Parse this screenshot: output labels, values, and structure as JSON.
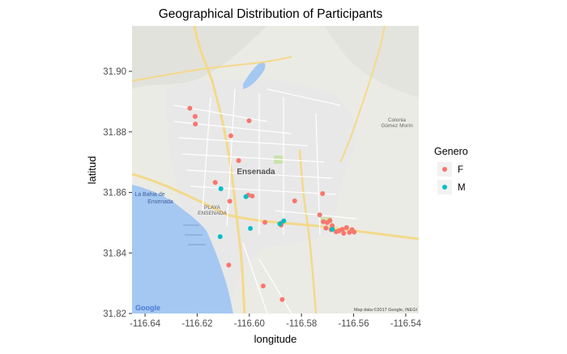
{
  "chart_data": {
    "type": "scatter",
    "title": "Geographical Distribution of Participants",
    "xlabel": "longitude",
    "ylabel": "latitud",
    "xlim": [
      -116.645,
      -116.535
    ],
    "ylim": [
      31.82,
      31.915
    ],
    "xticks": [
      -116.64,
      -116.62,
      -116.6,
      -116.58,
      -116.56,
      -116.54
    ],
    "xtick_labels": [
      "-116.64",
      "-116.62",
      "-116.60",
      "-116.58",
      "-116.56",
      "-116.54"
    ],
    "yticks": [
      31.82,
      31.84,
      31.86,
      31.88,
      31.9
    ],
    "ytick_labels": [
      "31.82",
      "31.84",
      "31.86",
      "31.88",
      "31.90"
    ],
    "grid": false,
    "legend": {
      "title": "Genero",
      "position": "right"
    },
    "series": [
      {
        "name": "F",
        "color": "#f8766d",
        "points": [
          [
            -116.6228,
            31.8878
          ],
          [
            -116.6208,
            31.8851
          ],
          [
            -116.6207,
            31.8826
          ],
          [
            -116.6071,
            31.8787
          ],
          [
            -116.6001,
            31.8837
          ],
          [
            -116.6041,
            31.8705
          ],
          [
            -116.6131,
            31.8633
          ],
          [
            -116.6004,
            31.8591
          ],
          [
            -116.5989,
            31.8588
          ],
          [
            -116.6075,
            31.8571
          ],
          [
            -116.5826,
            31.8572
          ],
          [
            -116.5719,
            31.8596
          ],
          [
            -116.594,
            31.8501
          ],
          [
            -116.5877,
            31.8499
          ],
          [
            -116.5878,
            31.8492
          ],
          [
            -116.573,
            31.8526
          ],
          [
            -116.5716,
            31.8503
          ],
          [
            -116.5701,
            31.85
          ],
          [
            -116.5691,
            31.8507
          ],
          [
            -116.5682,
            31.849
          ],
          [
            -116.5706,
            31.8482
          ],
          [
            -116.5686,
            31.8477
          ],
          [
            -116.5667,
            31.847
          ],
          [
            -116.5643,
            31.8478
          ],
          [
            -116.5627,
            31.8484
          ],
          [
            -116.5638,
            31.8465
          ],
          [
            -116.5616,
            31.8468
          ],
          [
            -116.5606,
            31.8477
          ],
          [
            -116.5656,
            31.8473
          ],
          [
            -116.5598,
            31.8469
          ],
          [
            -116.6079,
            31.836
          ],
          [
            -116.5947,
            31.8291
          ],
          [
            -116.5874,
            31.8246
          ]
        ]
      },
      {
        "name": "M",
        "color": "#00bfc4",
        "points": [
          [
            -116.6109,
            31.8612
          ],
          [
            -116.6013,
            31.8586
          ],
          [
            -116.6112,
            31.8454
          ],
          [
            -116.5996,
            31.8481
          ],
          [
            -116.5883,
            31.8496
          ],
          [
            -116.5868,
            31.8506
          ],
          [
            -116.5682,
            31.8478
          ]
        ]
      }
    ]
  },
  "map": {
    "place_labels": {
      "city": "Ensenada",
      "playa": "PLAYA\nENSENADA",
      "bay": "La Bahia de\nEnsenada",
      "colonia": "Colonia\nGómez Morín"
    },
    "attribution": "Map data ©2017 Google, INEGI",
    "logo": "Google",
    "colors": {
      "land": "#ebebe5",
      "water": "#a5c8f2",
      "road_major": "#f3d98a",
      "road_minor": "#ffffff",
      "park": "#cce1a8"
    }
  }
}
